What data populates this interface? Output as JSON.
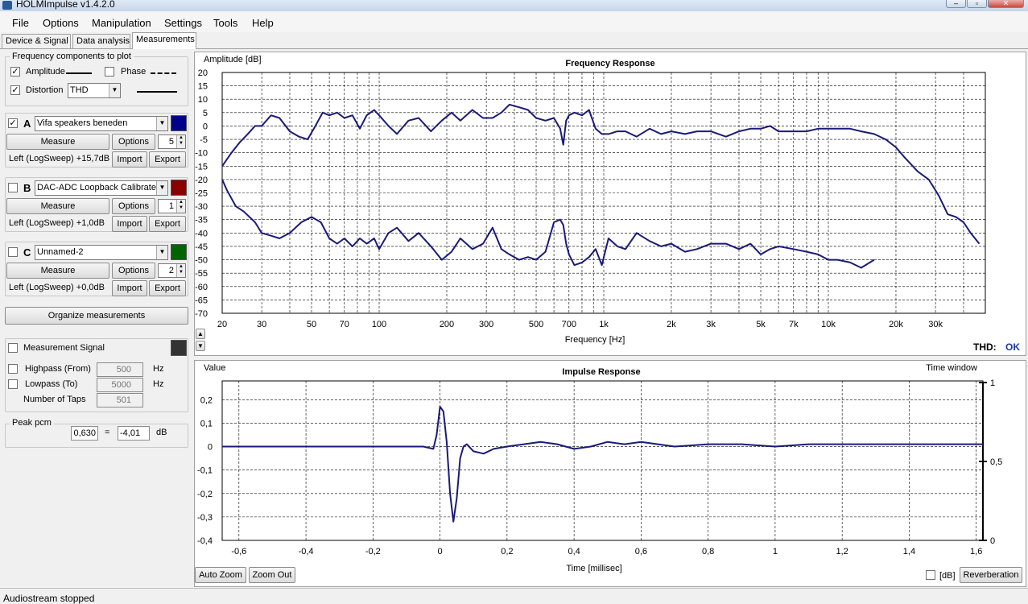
{
  "window": {
    "title": "HOLMImpulse  v1.4.2.0"
  },
  "menu": [
    "File",
    "Options",
    "Manipulation",
    "Settings",
    "Tools",
    "Help"
  ],
  "tabs": [
    "Device & Signal",
    "Data analysis",
    "Measurements"
  ],
  "freq_components": {
    "title": "Frequency components to plot",
    "amplitude_label": "Amplitude",
    "amplitude_checked": true,
    "phase_label": "Phase",
    "phase_checked": false,
    "distortion_label": "Distortion",
    "distortion_checked": true,
    "distortion_value": "THD"
  },
  "measurements": [
    {
      "letter": "A",
      "checked": true,
      "name": "Vifa speakers beneden",
      "color": "#00008b",
      "measure_label": "Measure",
      "options_label": "Options",
      "count": "5",
      "info": "Left (LogSweep) +15,7dB",
      "import_label": "Import",
      "export_label": "Export"
    },
    {
      "letter": "B",
      "checked": false,
      "name": "DAC-ADC Loopback Calibrated",
      "color": "#8b0000",
      "measure_label": "Measure",
      "options_label": "Options",
      "count": "1",
      "info": "Left (LogSweep) +1,0dB",
      "import_label": "Import",
      "export_label": "Export"
    },
    {
      "letter": "C",
      "checked": false,
      "name": "Unnamed-2",
      "color": "#006400",
      "measure_label": "Measure",
      "options_label": "Options",
      "count": "2",
      "info": "Left (LogSweep) +0,0dB",
      "import_label": "Import",
      "export_label": "Export"
    }
  ],
  "organize_label": "Organize measurements",
  "signal": {
    "measurement_signal_label": "Measurement Signal",
    "measurement_signal_color": "#333333",
    "highpass_label": "Highpass (From)",
    "highpass_value": "500",
    "highpass_unit": "Hz",
    "lowpass_label": "Lowpass (To)",
    "lowpass_value": "5000",
    "lowpass_unit": "Hz",
    "taps_label": "Number of Taps",
    "taps_value": "501"
  },
  "peak": {
    "title": "Peak pcm",
    "pcm": "0,630",
    "eq": "=",
    "db": "-4,01",
    "unit": "dB"
  },
  "fr_chart": {
    "thd_label": "THD:",
    "thd_status": "OK"
  },
  "ir_chart": {
    "auto_zoom_label": "Auto Zoom",
    "zoom_out_label": "Zoom Out",
    "db_label": "[dB]",
    "reverberation_label": "Reverberation"
  },
  "status": "Audiostream stopped",
  "chart_data": [
    {
      "type": "line",
      "title": "Frequency Response",
      "ylabel": "Amplitude [dB]",
      "xlabel": "Frequency [Hz]",
      "xscale": "log",
      "xlim": [
        20,
        50000
      ],
      "ylim": [
        -70,
        20
      ],
      "grid": true,
      "x_tick_labels": [
        "20",
        "30",
        "50",
        "70",
        "100",
        "200",
        "300",
        "500",
        "700",
        "1k",
        "2k",
        "3k",
        "5k",
        "7k",
        "10k",
        "20k",
        "30k"
      ],
      "x_tick_values": [
        20,
        30,
        50,
        70,
        100,
        200,
        300,
        500,
        700,
        1000,
        2000,
        3000,
        5000,
        7000,
        10000,
        20000,
        30000
      ],
      "y_tick_values": [
        20,
        15,
        10,
        5,
        0,
        -5,
        -10,
        -15,
        -20,
        -25,
        -30,
        -35,
        -40,
        -45,
        -50,
        -55,
        -60,
        -65,
        -70
      ],
      "series": [
        {
          "name": "Amplitude",
          "color": "#1a1a7a",
          "x": [
            20,
            22,
            24,
            26,
            28,
            30,
            33,
            36,
            40,
            44,
            48,
            52,
            56,
            60,
            65,
            70,
            76,
            82,
            88,
            95,
            100,
            110,
            120,
            135,
            150,
            170,
            190,
            210,
            230,
            260,
            290,
            320,
            350,
            380,
            420,
            460,
            500,
            550,
            600,
            640,
            660,
            680,
            700,
            740,
            800,
            860,
            920,
            980,
            1050,
            1150,
            1250,
            1400,
            1600,
            1800,
            2000,
            2300,
            2600,
            3000,
            3500,
            4000,
            4500,
            5000,
            5500,
            6000,
            7000,
            8000,
            9000,
            10000,
            11000,
            12500,
            14000,
            16000,
            18000,
            20000,
            22000,
            25000,
            28000,
            31000,
            34000,
            37000,
            40000,
            43000,
            47000
          ],
          "y": [
            -15,
            -10,
            -6,
            -3,
            0,
            0,
            4,
            3,
            -2,
            -4,
            -5,
            0,
            5,
            4,
            5,
            3,
            4,
            -1,
            4,
            6,
            4,
            0,
            -3,
            2,
            3,
            -2,
            2,
            5,
            2,
            6,
            3,
            3,
            5,
            8,
            7,
            6,
            3,
            2,
            3,
            -1,
            -7,
            2,
            4,
            5,
            4,
            6,
            -1,
            -3,
            -3,
            -2,
            -2,
            -4,
            -1,
            -3,
            -2,
            -3,
            -2,
            -2,
            -4,
            -2,
            -1,
            -1,
            0,
            -2,
            -2,
            -2,
            -1,
            -1,
            -1,
            -1,
            -2,
            -3,
            -5,
            -8,
            -12,
            -17,
            -20,
            -26,
            -33,
            -34,
            -36,
            -40,
            -44
          ]
        },
        {
          "name": "Distortion (THD)",
          "color": "#1a1a7a",
          "x": [
            20,
            21,
            23,
            25,
            28,
            30,
            33,
            36,
            40,
            45,
            50,
            55,
            60,
            65,
            70,
            76,
            82,
            88,
            95,
            100,
            110,
            120,
            135,
            150,
            170,
            190,
            210,
            230,
            260,
            290,
            320,
            350,
            380,
            420,
            460,
            500,
            550,
            600,
            640,
            660,
            680,
            700,
            740,
            800,
            860,
            920,
            980,
            1050,
            1150,
            1250,
            1400,
            1600,
            1800,
            2000,
            2300,
            2600,
            3000,
            3500,
            4000,
            4500,
            5000,
            5500,
            6000,
            7000,
            8000,
            9000,
            10000,
            11000,
            12500,
            14000,
            16000
          ],
          "y": [
            -20,
            -24,
            -30,
            -32,
            -36,
            -40,
            -41,
            -42,
            -40,
            -36,
            -34,
            -36,
            -42,
            -44,
            -42,
            -45,
            -42,
            -44,
            -42,
            -46,
            -40,
            -38,
            -43,
            -40,
            -45,
            -50,
            -47,
            -42,
            -46,
            -44,
            -38,
            -46,
            -48,
            -50,
            -49,
            -50,
            -47,
            -36,
            -35,
            -37,
            -44,
            -48,
            -52,
            -51,
            -49,
            -46,
            -52,
            -42,
            -45,
            -46,
            -40,
            -43,
            -45,
            -44,
            -47,
            -46,
            -44,
            -44,
            -46,
            -44,
            -48,
            -46,
            -45,
            -46,
            -47,
            -48,
            -50,
            -50,
            -51,
            -53,
            -50
          ]
        }
      ]
    },
    {
      "type": "line",
      "title": "Impulse Response",
      "ylabel": "Value",
      "xlabel": "Time [millisec]",
      "y2label": "Time window",
      "xlim": [
        -0.65,
        1.62
      ],
      "ylim": [
        -0.4,
        0.28
      ],
      "grid": true,
      "x_tick_labels": [
        "-0,6",
        "-0,4",
        "-0,2",
        "0",
        "0,2",
        "0,4",
        "0,6",
        "0,8",
        "1",
        "1,2",
        "1,4",
        "1,6"
      ],
      "x_tick_values": [
        -0.6,
        -0.4,
        -0.2,
        0,
        0.2,
        0.4,
        0.6,
        0.8,
        1,
        1.2,
        1.4,
        1.6
      ],
      "y_tick_labels": [
        "0,2",
        "0,1",
        "0",
        "-0,1",
        "-0,2",
        "-0,3",
        "-0,4"
      ],
      "y_tick_values": [
        0.2,
        0.1,
        0,
        -0.1,
        -0.2,
        -0.3,
        -0.4
      ],
      "y2_tick_labels": [
        "1",
        "0,5",
        "0"
      ],
      "y2_tick_values": [
        1,
        0.5,
        0
      ],
      "series": [
        {
          "name": "Impulse",
          "color": "#1a1a7a",
          "x": [
            -0.65,
            -0.05,
            -0.02,
            -0.01,
            0,
            0.01,
            0.02,
            0.03,
            0.04,
            0.05,
            0.06,
            0.07,
            0.08,
            0.1,
            0.13,
            0.16,
            0.2,
            0.25,
            0.3,
            0.35,
            0.4,
            0.45,
            0.5,
            0.55,
            0.6,
            0.7,
            0.8,
            0.9,
            1.0,
            1.1,
            1.2,
            1.3,
            1.4,
            1.5,
            1.62
          ],
          "y": [
            0,
            0,
            -0.01,
            0.05,
            0.17,
            0.15,
            0.02,
            -0.2,
            -0.32,
            -0.22,
            -0.05,
            0.0,
            0.01,
            -0.02,
            -0.03,
            -0.01,
            0,
            0.01,
            0.02,
            0.01,
            -0.01,
            0,
            0.02,
            0.01,
            0.02,
            0,
            0.01,
            0.01,
            0.0,
            0.01,
            0.01,
            0.01,
            0.01,
            0.01,
            0.01
          ]
        }
      ]
    }
  ]
}
